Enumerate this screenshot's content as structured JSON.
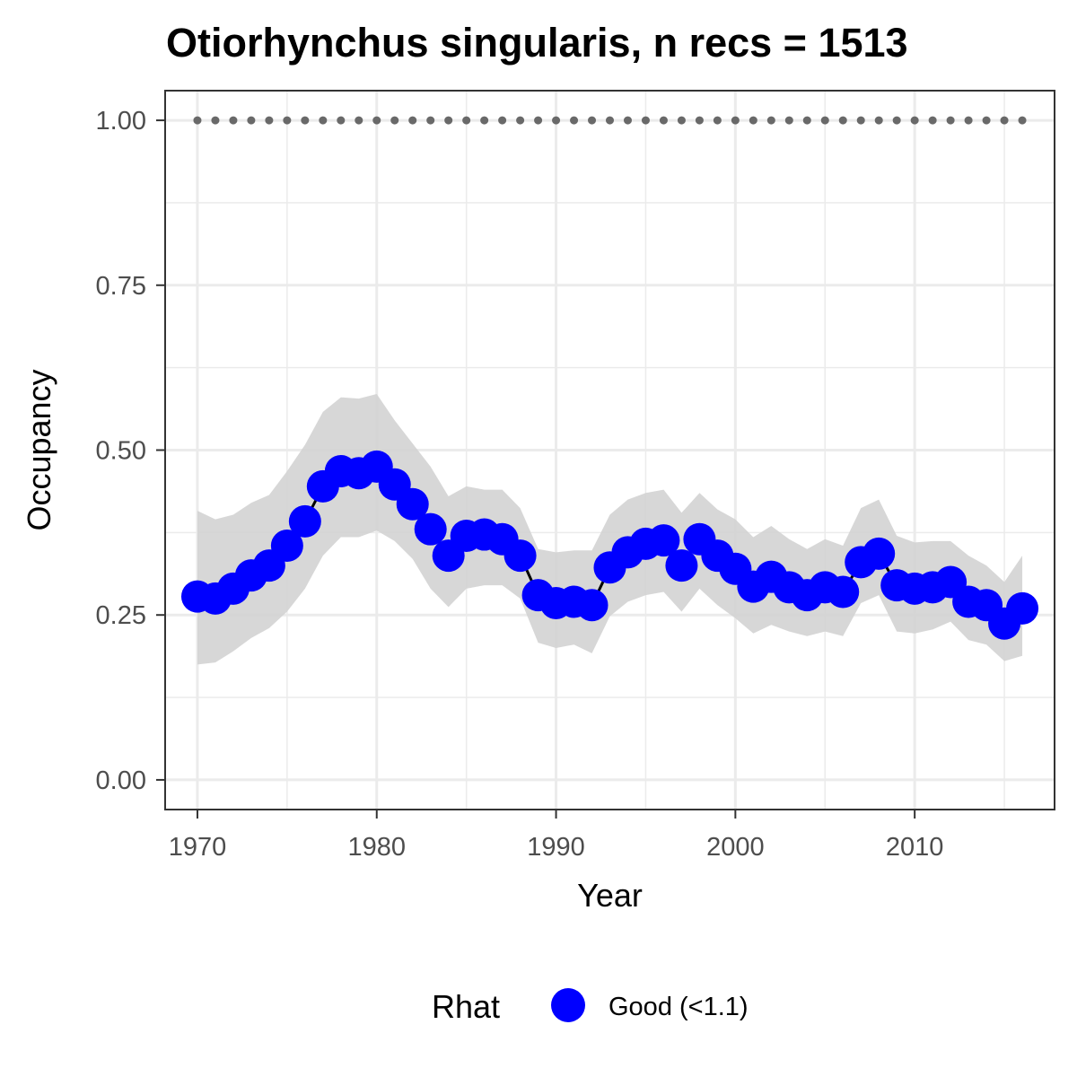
{
  "chart_data": {
    "type": "line",
    "title": "Otiorhynchus singularis, n recs = 1513",
    "xlabel": "Year",
    "ylabel": "Occupancy",
    "xlim": [
      1968.2,
      2017.8
    ],
    "ylim": [
      -0.045,
      1.045
    ],
    "x_ticks": [
      1970,
      1980,
      1990,
      2000,
      2010
    ],
    "y_ticks": [
      0.0,
      0.25,
      0.5,
      0.75,
      1.0
    ],
    "y_tick_labels": [
      "0.00",
      "0.25",
      "0.50",
      "0.75",
      "1.00"
    ],
    "grid": true,
    "legend": {
      "title": "Rhat",
      "position": "bottom",
      "entries": [
        {
          "label": "Good (<1.1)",
          "color": "#0000ff"
        }
      ]
    },
    "colors": {
      "points": "#0000ff",
      "line": "#000000",
      "ribbon": "#d3d3d3",
      "reference_points": "#696969",
      "grid": "#ebebeb",
      "panel_border": "#333333"
    },
    "series": [
      {
        "name": "Good (<1.1)",
        "x": [
          1970,
          1971,
          1972,
          1973,
          1974,
          1975,
          1976,
          1977,
          1978,
          1979,
          1980,
          1981,
          1982,
          1983,
          1984,
          1985,
          1986,
          1987,
          1988,
          1989,
          1990,
          1991,
          1992,
          1993,
          1994,
          1995,
          1996,
          1997,
          1998,
          1999,
          2000,
          2001,
          2002,
          2003,
          2004,
          2005,
          2006,
          2007,
          2008,
          2009,
          2010,
          2011,
          2012,
          2013,
          2014,
          2015,
          2016
        ],
        "y": [
          0.278,
          0.275,
          0.29,
          0.31,
          0.325,
          0.355,
          0.392,
          0.445,
          0.468,
          0.465,
          0.475,
          0.448,
          0.418,
          0.38,
          0.34,
          0.37,
          0.372,
          0.365,
          0.34,
          0.28,
          0.268,
          0.27,
          0.265,
          0.322,
          0.345,
          0.358,
          0.363,
          0.325,
          0.365,
          0.34,
          0.32,
          0.293,
          0.308,
          0.292,
          0.28,
          0.292,
          0.285,
          0.33,
          0.343,
          0.295,
          0.29,
          0.292,
          0.3,
          0.27,
          0.265,
          0.237,
          0.26
        ],
        "lower": [
          0.175,
          0.178,
          0.195,
          0.215,
          0.23,
          0.255,
          0.29,
          0.34,
          0.368,
          0.368,
          0.378,
          0.362,
          0.335,
          0.29,
          0.262,
          0.29,
          0.295,
          0.295,
          0.275,
          0.208,
          0.2,
          0.205,
          0.192,
          0.248,
          0.27,
          0.28,
          0.285,
          0.255,
          0.29,
          0.265,
          0.245,
          0.222,
          0.235,
          0.225,
          0.218,
          0.225,
          0.218,
          0.268,
          0.28,
          0.225,
          0.222,
          0.228,
          0.24,
          0.212,
          0.205,
          0.18,
          0.188
        ],
        "upper": [
          0.408,
          0.395,
          0.402,
          0.42,
          0.432,
          0.468,
          0.508,
          0.558,
          0.58,
          0.578,
          0.585,
          0.545,
          0.51,
          0.475,
          0.43,
          0.445,
          0.44,
          0.44,
          0.412,
          0.35,
          0.345,
          0.348,
          0.348,
          0.402,
          0.425,
          0.435,
          0.44,
          0.405,
          0.435,
          0.41,
          0.395,
          0.368,
          0.385,
          0.365,
          0.35,
          0.365,
          0.355,
          0.412,
          0.425,
          0.37,
          0.36,
          0.362,
          0.362,
          0.34,
          0.325,
          0.3,
          0.34
        ]
      },
      {
        "name": "",
        "style": "reference-points",
        "x": [
          1970,
          1971,
          1972,
          1973,
          1974,
          1975,
          1976,
          1977,
          1978,
          1979,
          1980,
          1981,
          1982,
          1983,
          1984,
          1985,
          1986,
          1987,
          1988,
          1989,
          1990,
          1991,
          1992,
          1993,
          1994,
          1995,
          1996,
          1997,
          1998,
          1999,
          2000,
          2001,
          2002,
          2003,
          2004,
          2005,
          2006,
          2007,
          2008,
          2009,
          2010,
          2011,
          2012,
          2013,
          2014,
          2015,
          2016
        ],
        "y": [
          1,
          1,
          1,
          1,
          1,
          1,
          1,
          1,
          1,
          1,
          1,
          1,
          1,
          1,
          1,
          1,
          1,
          1,
          1,
          1,
          1,
          1,
          1,
          1,
          1,
          1,
          1,
          1,
          1,
          1,
          1,
          1,
          1,
          1,
          1,
          1,
          1,
          1,
          1,
          1,
          1,
          1,
          1,
          1,
          1,
          1,
          1
        ]
      }
    ]
  }
}
